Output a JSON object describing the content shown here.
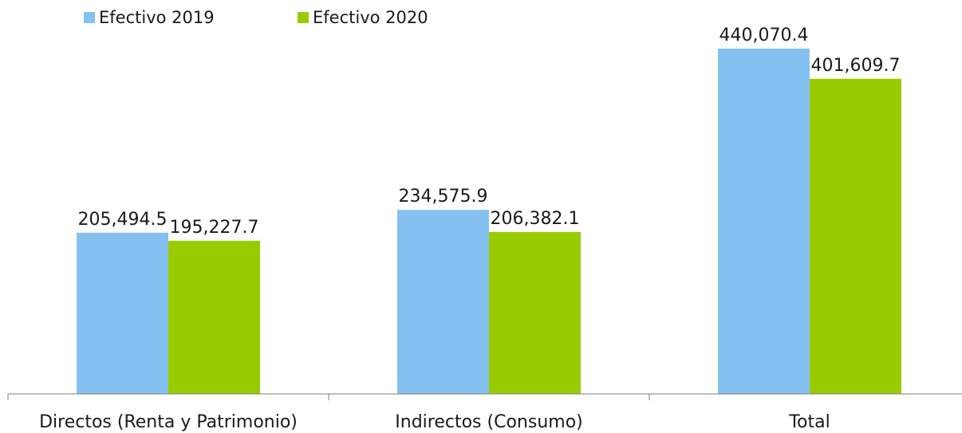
{
  "chart_data": {
    "type": "bar",
    "categories": [
      "Directos (Renta y Patrimonio)",
      "Indirectos (Consumo)",
      "Total"
    ],
    "series": [
      {
        "name": "Efectivo 2019",
        "values": [
          205494.5,
          234575.9,
          440070.4
        ],
        "labels": [
          "205,494.5",
          "234,575.9",
          "440,070.4"
        ],
        "color": "#85c1f0"
      },
      {
        "name": "Efectivo 2020",
        "values": [
          195227.7,
          206382.1,
          401609.7
        ],
        "labels": [
          "195,227.7",
          "206,382.1",
          "401,609.7"
        ],
        "color": "#99cc00"
      }
    ],
    "ylim": [
      0,
      440070.4
    ],
    "legend_position": "top-left",
    "grid": false
  }
}
